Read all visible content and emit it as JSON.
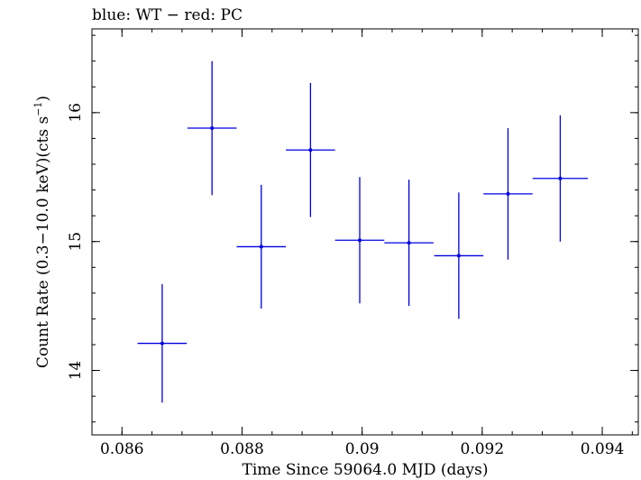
{
  "chart_data": {
    "type": "scatter",
    "title": "blue: WT − red: PC",
    "xlabel": "Time Since 59064.0 MJD (days)",
    "ylabel_main": "Count Rate (0.3−10.0 keV)(cts s",
    "ylabel_sup": "−1",
    "ylabel_close": ")",
    "xlim": [
      0.0855,
      0.0946
    ],
    "ylim": [
      13.5,
      16.65
    ],
    "x_ticks": [
      0.086,
      0.088,
      0.09,
      0.092,
      0.094
    ],
    "x_tick_labels": [
      "0.086",
      "0.088",
      "0.09",
      "0.092",
      "0.094"
    ],
    "y_ticks": [
      14,
      15,
      16
    ],
    "y_tick_labels": [
      "14",
      "15",
      "16"
    ],
    "grid": false,
    "series": [
      {
        "name": "WT",
        "color": "#0000e0",
        "points": [
          {
            "x": 0.08667,
            "xerr": 0.00041,
            "y": 14.21,
            "yerr": 0.46
          },
          {
            "x": 0.0875,
            "xerr": 0.00041,
            "y": 15.88,
            "yerr": 0.52
          },
          {
            "x": 0.08832,
            "xerr": 0.00041,
            "y": 14.96,
            "yerr": 0.48
          },
          {
            "x": 0.08914,
            "xerr": 0.00041,
            "y": 15.71,
            "yerr": 0.52
          },
          {
            "x": 0.08996,
            "xerr": 0.00041,
            "y": 15.01,
            "yerr": 0.49
          },
          {
            "x": 0.09078,
            "xerr": 0.00041,
            "y": 14.99,
            "yerr": 0.49
          },
          {
            "x": 0.09161,
            "xerr": 0.00041,
            "y": 14.89,
            "yerr": 0.49
          },
          {
            "x": 0.09243,
            "xerr": 0.00041,
            "y": 15.37,
            "yerr": 0.51
          },
          {
            "x": 0.0933,
            "xerr": 0.00046,
            "y": 15.49,
            "yerr": 0.49
          }
        ]
      }
    ]
  }
}
